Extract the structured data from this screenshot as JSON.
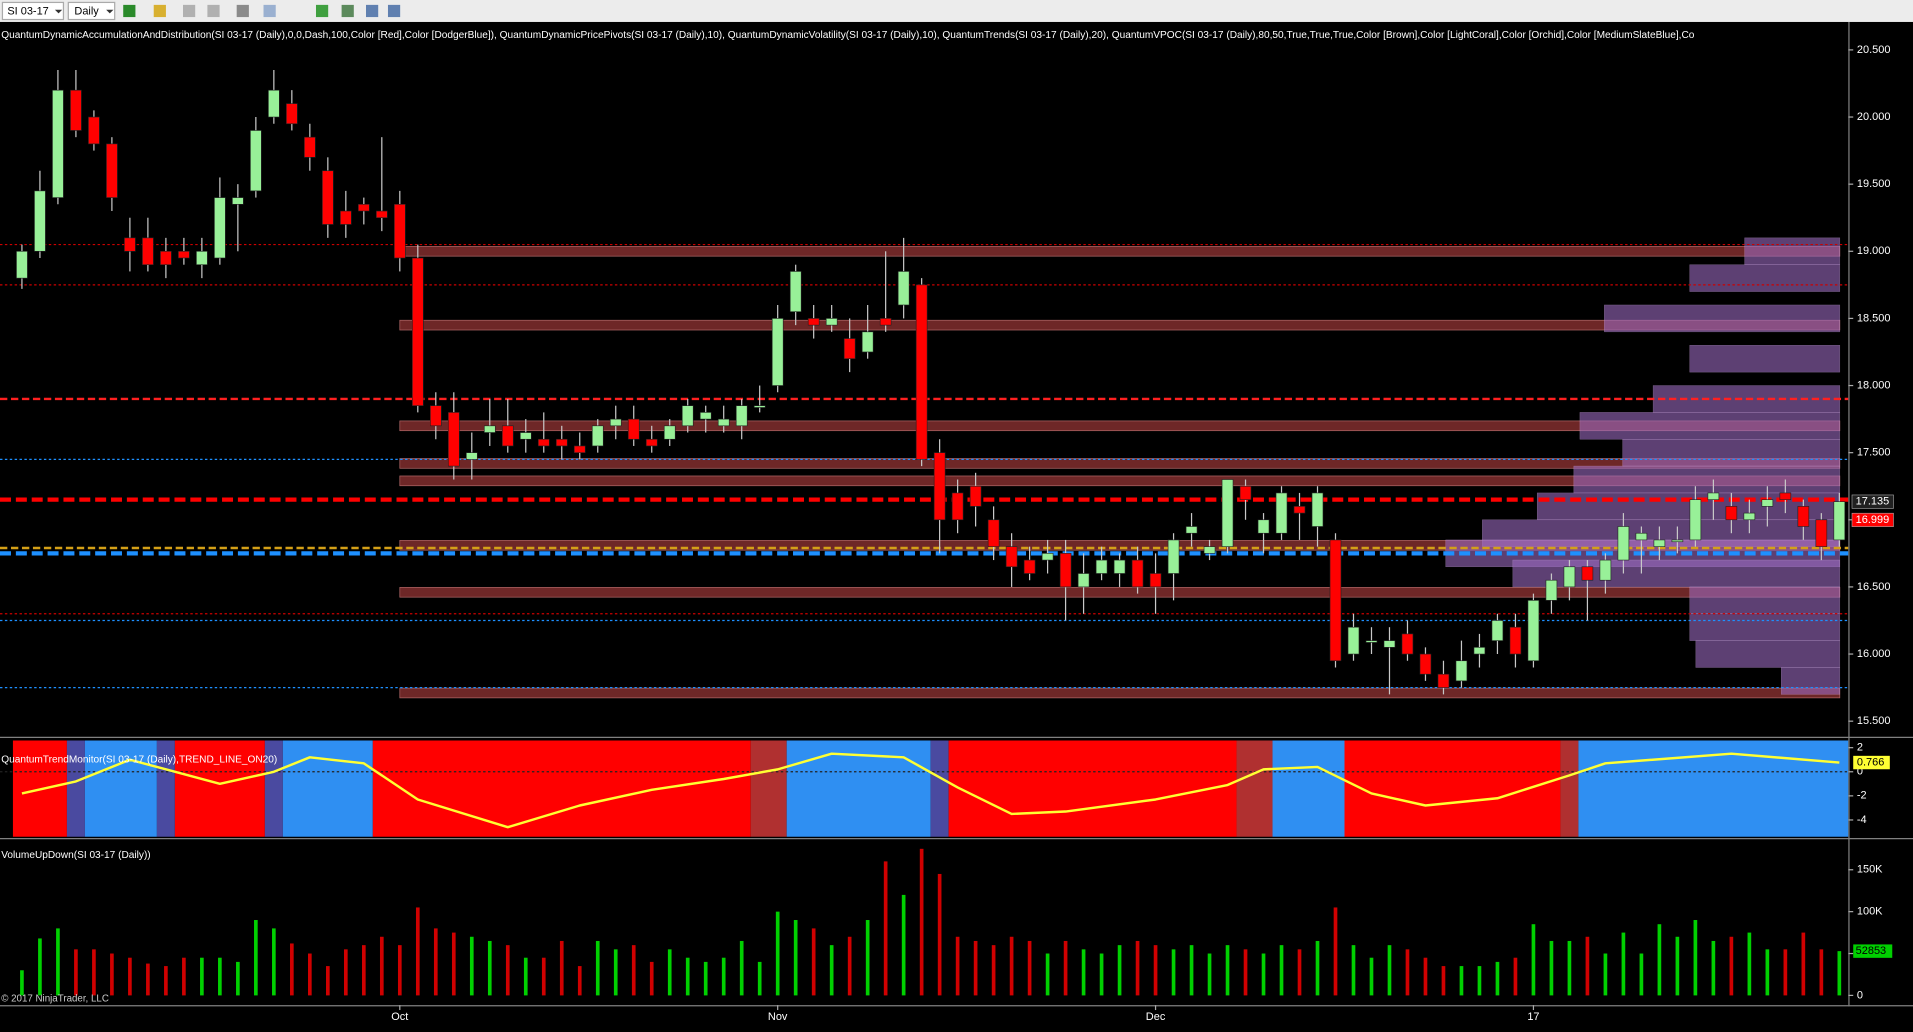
{
  "toolbar": {
    "instrument": "SI 03-17",
    "period": "Daily"
  },
  "copyright": "© 2017 NinjaTrader, LLC",
  "chart_data": [
    {
      "type": "candlestick",
      "title": "QuantumDynamicAccumulationAndDistribution(SI 03-17 (Daily),0,0,Dash,100,Color [Red],Color [DodgerBlue]), QuantumDynamicPricePivots(SI 03-17 (Daily),10), QuantumDynamicVolatility(SI 03-17 (Daily),10), QuantumTrends(SI 03-17 (Daily),20), QuantumVPOC(SI 03-17 (Daily),80,50,True,True,True,Color [Brown],Color [LightCoral],Color [Orchid],Color [MediumSlateBlue],Co",
      "categories": [
        null,
        null,
        null,
        null,
        null,
        null,
        null,
        null,
        null,
        null,
        null,
        null,
        null,
        null,
        null,
        null,
        null,
        null,
        null,
        null,
        null,
        "Oct",
        null,
        null,
        null,
        null,
        null,
        null,
        null,
        null,
        null,
        null,
        null,
        null,
        null,
        null,
        null,
        null,
        null,
        null,
        null,
        null,
        "Nov",
        null,
        null,
        null,
        null,
        null,
        null,
        null,
        null,
        null,
        null,
        null,
        null,
        null,
        null,
        null,
        null,
        null,
        null,
        null,
        null,
        "Dec",
        null,
        null,
        null,
        null,
        null,
        null,
        null,
        null,
        null,
        null,
        null,
        null,
        null,
        null,
        null,
        null,
        null,
        null,
        null,
        null,
        "17",
        null,
        null,
        null,
        null,
        null,
        null,
        null,
        null,
        null,
        null,
        null,
        null,
        null,
        null,
        null,
        null,
        null
      ],
      "ohlc": [
        [
          18.8,
          19.05,
          18.72,
          19.0
        ],
        [
          19.0,
          19.6,
          18.95,
          19.45
        ],
        [
          19.4,
          20.35,
          19.35,
          20.2
        ],
        [
          20.2,
          20.35,
          19.85,
          19.9
        ],
        [
          20.0,
          20.05,
          19.75,
          19.8
        ],
        [
          19.8,
          19.85,
          19.3,
          19.4
        ],
        [
          19.1,
          19.25,
          18.85,
          19.0
        ],
        [
          19.1,
          19.25,
          18.85,
          18.9
        ],
        [
          19.0,
          19.1,
          18.8,
          18.9
        ],
        [
          19.0,
          19.1,
          18.9,
          18.95
        ],
        [
          18.9,
          19.1,
          18.8,
          19.0
        ],
        [
          18.95,
          19.55,
          18.9,
          19.4
        ],
        [
          19.35,
          19.5,
          19.0,
          19.4
        ],
        [
          19.45,
          20.0,
          19.4,
          19.9
        ],
        [
          20.0,
          20.35,
          19.95,
          20.2
        ],
        [
          20.1,
          20.2,
          19.9,
          19.95
        ],
        [
          19.85,
          19.95,
          19.6,
          19.7
        ],
        [
          19.6,
          19.7,
          19.1,
          19.2
        ],
        [
          19.3,
          19.45,
          19.1,
          19.2
        ],
        [
          19.35,
          19.4,
          19.2,
          19.3
        ],
        [
          19.3,
          19.85,
          19.15,
          19.25
        ],
        [
          19.35,
          19.45,
          18.85,
          18.95
        ],
        [
          18.95,
          19.05,
          17.8,
          17.85
        ],
        [
          17.85,
          17.95,
          17.6,
          17.7
        ],
        [
          17.8,
          17.95,
          17.3,
          17.4
        ],
        [
          17.45,
          17.65,
          17.3,
          17.5
        ],
        [
          17.65,
          17.9,
          17.55,
          17.7
        ],
        [
          17.7,
          17.9,
          17.5,
          17.55
        ],
        [
          17.6,
          17.75,
          17.5,
          17.65
        ],
        [
          17.6,
          17.8,
          17.5,
          17.55
        ],
        [
          17.6,
          17.7,
          17.45,
          17.55
        ],
        [
          17.55,
          17.65,
          17.45,
          17.5
        ],
        [
          17.55,
          17.75,
          17.5,
          17.7
        ],
        [
          17.7,
          17.85,
          17.6,
          17.75
        ],
        [
          17.75,
          17.85,
          17.55,
          17.6
        ],
        [
          17.6,
          17.7,
          17.5,
          17.55
        ],
        [
          17.6,
          17.75,
          17.55,
          17.7
        ],
        [
          17.7,
          17.9,
          17.65,
          17.85
        ],
        [
          17.75,
          17.85,
          17.65,
          17.8
        ],
        [
          17.7,
          17.85,
          17.65,
          17.75
        ],
        [
          17.7,
          17.9,
          17.6,
          17.85
        ],
        [
          17.85,
          18.0,
          17.8,
          17.85
        ],
        [
          18.0,
          18.6,
          17.95,
          18.5
        ],
        [
          18.55,
          18.9,
          18.45,
          18.85
        ],
        [
          18.5,
          18.6,
          18.35,
          18.45
        ],
        [
          18.45,
          18.6,
          18.4,
          18.5
        ],
        [
          18.35,
          18.5,
          18.1,
          18.2
        ],
        [
          18.25,
          18.6,
          18.2,
          18.4
        ],
        [
          18.5,
          19.0,
          18.4,
          18.45
        ],
        [
          18.6,
          19.1,
          18.5,
          18.85
        ],
        [
          18.75,
          18.8,
          17.4,
          17.45
        ],
        [
          17.5,
          17.6,
          16.75,
          17.0
        ],
        [
          17.2,
          17.3,
          16.9,
          17.0
        ],
        [
          17.25,
          17.35,
          16.95,
          17.1
        ],
        [
          17.0,
          17.1,
          16.7,
          16.8
        ],
        [
          16.8,
          16.9,
          16.5,
          16.65
        ],
        [
          16.7,
          16.8,
          16.55,
          16.6
        ],
        [
          16.7,
          16.85,
          16.6,
          16.75
        ],
        [
          16.75,
          16.85,
          16.25,
          16.5
        ],
        [
          16.5,
          16.75,
          16.3,
          16.6
        ],
        [
          16.6,
          16.8,
          16.55,
          16.7
        ],
        [
          16.6,
          16.75,
          16.5,
          16.7
        ],
        [
          16.7,
          16.8,
          16.45,
          16.5
        ],
        [
          16.6,
          16.75,
          16.3,
          16.5
        ],
        [
          16.6,
          16.9,
          16.4,
          16.85
        ],
        [
          16.9,
          17.05,
          16.8,
          16.95
        ],
        [
          16.75,
          16.85,
          16.7,
          16.8
        ],
        [
          16.8,
          17.3,
          16.75,
          17.3
        ],
        [
          17.25,
          17.3,
          17.0,
          17.15
        ],
        [
          16.9,
          17.05,
          16.75,
          17.0
        ],
        [
          16.9,
          17.25,
          16.85,
          17.2
        ],
        [
          17.1,
          17.2,
          16.85,
          17.05
        ],
        [
          16.95,
          17.25,
          16.8,
          17.2
        ],
        [
          16.85,
          16.9,
          15.9,
          15.95
        ],
        [
          16.0,
          16.3,
          15.95,
          16.2
        ],
        [
          16.1,
          16.2,
          16.0,
          16.1
        ],
        [
          16.05,
          16.2,
          15.7,
          16.1
        ],
        [
          16.15,
          16.25,
          15.95,
          16.0
        ],
        [
          16.0,
          16.05,
          15.8,
          15.85
        ],
        [
          15.85,
          15.95,
          15.7,
          15.75
        ],
        [
          15.8,
          16.1,
          15.75,
          15.95
        ],
        [
          16.0,
          16.15,
          15.9,
          16.05
        ],
        [
          16.1,
          16.3,
          16.0,
          16.25
        ],
        [
          16.2,
          16.3,
          15.9,
          16.0
        ],
        [
          15.95,
          16.45,
          15.9,
          16.4
        ],
        [
          16.4,
          16.6,
          16.3,
          16.55
        ],
        [
          16.5,
          16.7,
          16.4,
          16.65
        ],
        [
          16.65,
          16.7,
          16.25,
          16.55
        ],
        [
          16.55,
          16.75,
          16.45,
          16.7
        ],
        [
          16.7,
          17.05,
          16.6,
          16.95
        ],
        [
          16.85,
          16.95,
          16.6,
          16.9
        ],
        [
          16.8,
          16.95,
          16.7,
          16.85
        ],
        [
          16.85,
          16.95,
          16.75,
          16.85
        ],
        [
          16.85,
          17.25,
          16.8,
          17.15
        ],
        [
          17.15,
          17.3,
          17.0,
          17.2
        ],
        [
          17.1,
          17.2,
          16.9,
          17.0
        ],
        [
          17.0,
          17.15,
          16.9,
          17.05
        ],
        [
          17.1,
          17.25,
          16.95,
          17.15
        ],
        [
          17.2,
          17.3,
          17.05,
          17.15
        ],
        [
          17.1,
          17.15,
          16.85,
          16.95
        ],
        [
          17.0,
          17.05,
          16.7,
          16.8
        ],
        [
          16.85,
          17.2,
          16.8,
          17.135
        ]
      ],
      "up_color": "#98f098",
      "down_color": "#ff0000",
      "ylim": [
        15.42,
        20.69
      ],
      "yticks": [
        {
          "value": 20.5,
          "label": "20.500"
        },
        {
          "value": 20,
          "label": "20.000"
        },
        {
          "value": 19.5,
          "label": "19.500"
        },
        {
          "value": 19,
          "label": "19.000"
        },
        {
          "value": 18.5,
          "label": "18.500"
        },
        {
          "value": 18,
          "label": "18.000"
        },
        {
          "value": 17.5,
          "label": "17.500"
        },
        {
          "value": 17,
          "label": "17.000"
        },
        {
          "value": 16.5,
          "label": "16.500"
        },
        {
          "value": 16,
          "label": "16.000"
        },
        {
          "value": 15.5,
          "label": "15.500"
        }
      ],
      "zones": {
        "from": 21,
        "values": [
          19.0,
          18.45,
          17.7,
          17.42,
          17.29,
          16.81,
          16.46,
          15.71
        ],
        "color": "#7a2c2c"
      },
      "levels": [
        {
          "value": 19.05,
          "color": "#cc0000",
          "style": "dot"
        },
        {
          "value": 18.75,
          "color": "#cc0000",
          "style": "dot"
        },
        {
          "value": 17.9,
          "color": "#ff2020",
          "style": "dash"
        },
        {
          "value": 17.45,
          "color": "#1e90ff",
          "style": "dot"
        },
        {
          "value": 17.15,
          "color": "#ff0000",
          "style": "thick"
        },
        {
          "value": 16.79,
          "color": "#d4a017",
          "style": "dash"
        },
        {
          "value": 16.75,
          "color": "#1e90ff",
          "style": "thick"
        },
        {
          "value": 16.3,
          "color": "#cc0000",
          "style": "dot"
        },
        {
          "value": 16.25,
          "color": "#1e90ff",
          "style": "dot"
        },
        {
          "value": 15.75,
          "color": "#1e90ff",
          "style": "dot"
        }
      ],
      "volume_profile": {
        "prices": [
          19.0,
          18.8,
          18.5,
          18.2,
          17.9,
          17.7,
          17.5,
          17.3,
          17.1,
          16.9,
          16.75,
          16.6,
          16.4,
          16.2,
          16.0,
          15.8
        ],
        "values": [
          78,
          123,
          193,
          123,
          153,
          213,
          178,
          218,
          248,
          293,
          323,
          268,
          123,
          123,
          118,
          48
        ],
        "xlim": [
          0,
          330
        ],
        "color": "#9b6bc0"
      },
      "price_markers": [
        {
          "value": 17.135,
          "color": "#202020"
        },
        {
          "value": 16.999,
          "color": "#ff0000"
        }
      ]
    },
    {
      "type": "line",
      "title": "QuantumTrendMonitor(SI 03-17 (Daily),TREND_LINE_ON20)",
      "x": [
        0,
        3,
        6,
        8,
        11,
        14,
        16,
        19,
        22,
        27,
        31,
        35,
        39,
        42,
        45,
        49,
        52,
        55,
        58,
        63,
        67,
        69,
        72,
        75,
        78,
        82,
        86,
        88,
        95,
        101
      ],
      "values": [
        -1.8,
        -0.8,
        1,
        0.2,
        -1,
        0,
        1.2,
        0.7,
        -2.3,
        -4.6,
        -2.8,
        -1.5,
        -0.6,
        0.2,
        1.5,
        1.2,
        -1.3,
        -3.5,
        -3.3,
        -2.3,
        -1.1,
        0.2,
        0.4,
        -1.8,
        -2.8,
        -2.2,
        -0.3,
        0.7,
        1.5,
        0.766
      ],
      "color": "#ffff33",
      "xlim": [
        -0.5,
        101.5
      ],
      "ylim": [
        -5.4,
        2.6
      ],
      "yticks": [
        2,
        0,
        -2,
        -4
      ],
      "bands": [
        {
          "from": 0,
          "to": 2,
          "color": "#ff0000"
        },
        {
          "from": 3,
          "to": 3,
          "color": "#4a4aa0"
        },
        {
          "from": 4,
          "to": 7,
          "color": "#2f8ff2"
        },
        {
          "from": 8,
          "to": 8,
          "color": "#4a4aa0"
        },
        {
          "from": 9,
          "to": 13,
          "color": "#ff0000"
        },
        {
          "from": 14,
          "to": 14,
          "color": "#4a4aa0"
        },
        {
          "from": 15,
          "to": 19,
          "color": "#2f8ff2"
        },
        {
          "from": 20,
          "to": 40,
          "color": "#ff0000"
        },
        {
          "from": 41,
          "to": 42,
          "color": "#b03030"
        },
        {
          "from": 43,
          "to": 50,
          "color": "#2f8ff2"
        },
        {
          "from": 51,
          "to": 51,
          "color": "#4a4aa0"
        },
        {
          "from": 52,
          "to": 67,
          "color": "#ff0000"
        },
        {
          "from": 68,
          "to": 69,
          "color": "#b03030"
        },
        {
          "from": 70,
          "to": 73,
          "color": "#2f8ff2"
        },
        {
          "from": 74,
          "to": 85,
          "color": "#ff0000"
        },
        {
          "from": 86,
          "to": 86,
          "color": "#b03030"
        },
        {
          "from": 87,
          "to": 101,
          "color": "#2f8ff2"
        }
      ],
      "last_value": 0.766
    },
    {
      "type": "bar",
      "title": "VolumeUpDown(SI 03-17 (Daily))",
      "values": [
        30000,
        68000,
        80000,
        55000,
        55000,
        50000,
        45000,
        38000,
        35000,
        45000,
        45000,
        45000,
        40000,
        90000,
        80000,
        62000,
        50000,
        35000,
        55000,
        60000,
        70000,
        60000,
        105000,
        80000,
        75000,
        70000,
        65000,
        60000,
        45000,
        45000,
        65000,
        35000,
        65000,
        55000,
        60000,
        40000,
        55000,
        45000,
        40000,
        45000,
        65000,
        40000,
        100000,
        90000,
        80000,
        60000,
        70000,
        90000,
        160000,
        120000,
        175000,
        145000,
        70000,
        65000,
        60000,
        70000,
        65000,
        50000,
        65000,
        55000,
        50000,
        60000,
        65000,
        60000,
        55000,
        60000,
        50000,
        60000,
        55000,
        50000,
        60000,
        55000,
        65000,
        105000,
        60000,
        45000,
        60000,
        55000,
        45000,
        35000,
        35000,
        35000,
        40000,
        45000,
        85000,
        65000,
        65000,
        70000,
        50000,
        75000,
        50000,
        85000,
        70000,
        90000,
        65000,
        70000,
        75000,
        55000,
        55000,
        75000,
        55000,
        52853
      ],
      "up_color": "#00d000",
      "down_color": "#d00000",
      "ylim": [
        0,
        183500
      ],
      "yticks": [
        {
          "value": 150000,
          "label": "150K"
        },
        {
          "value": 100000,
          "label": "100K"
        },
        50000,
        0
      ],
      "last_value": 52853
    }
  ]
}
